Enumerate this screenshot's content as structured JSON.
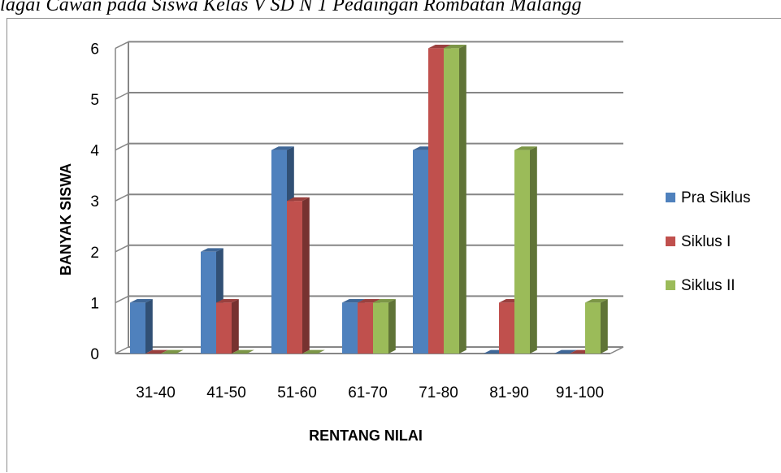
{
  "caption": "lagai Cawan pada Siswa Kelas V SD N 1 Pedaingan Rombatan Malangg",
  "colors": {
    "pra_siklus": "#4f81bd",
    "siklus_1": "#c0504d",
    "siklus_2": "#9bbb59",
    "gridline": "#868686",
    "axis": "#868686"
  },
  "chart_data": {
    "type": "bar",
    "title": "",
    "xlabel": "RENTANG NILAI",
    "ylabel": "BANYAK SISWA",
    "ylim": [
      0,
      6
    ],
    "yticks": [
      0,
      1,
      2,
      3,
      4,
      5,
      6
    ],
    "grid": true,
    "legend_position": "right",
    "categories": [
      "31-40",
      "41-50",
      "51-60",
      "61-70",
      "71-80",
      "81-90",
      "91-100"
    ],
    "series": [
      {
        "name": "Pra Siklus",
        "values": [
          1,
          2,
          4,
          1,
          4,
          0,
          0
        ]
      },
      {
        "name": "Siklus I",
        "values": [
          0,
          1,
          3,
          1,
          6,
          1,
          0
        ]
      },
      {
        "name": "Siklus II",
        "values": [
          0,
          0,
          0,
          1,
          6,
          4,
          1
        ]
      }
    ]
  }
}
